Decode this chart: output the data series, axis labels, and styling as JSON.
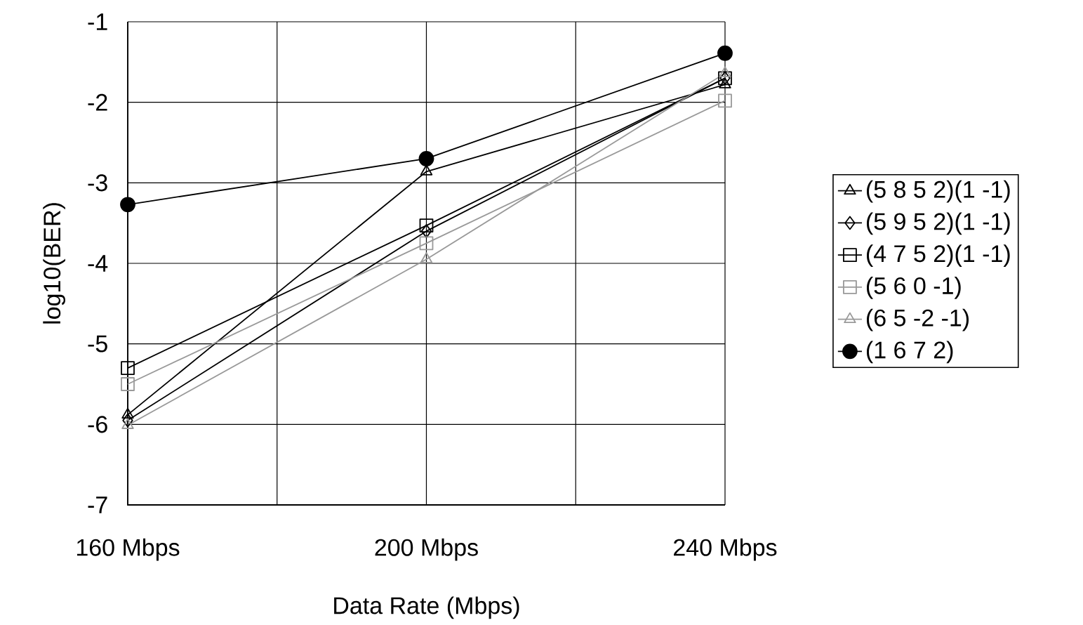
{
  "chart_data": {
    "type": "line",
    "xlabel": "Data Rate (Mbps)",
    "ylabel": "log10(BER)",
    "x": [
      160,
      200,
      240
    ],
    "xlim": [
      160,
      240
    ],
    "xticks": [
      {
        "value": 160,
        "label": "160 Mbps"
      },
      {
        "value": 180,
        "label": null
      },
      {
        "value": 200,
        "label": "200 Mbps"
      },
      {
        "value": 220,
        "label": null
      },
      {
        "value": 240,
        "label": "240 Mbps"
      }
    ],
    "ylim": [
      -7,
      -1
    ],
    "yticks": [
      -7,
      -6,
      -5,
      -4,
      -3,
      -2,
      -1
    ],
    "grid": true,
    "legend": "right",
    "line_style": "solid",
    "series": [
      {
        "name": "(5 8 5 2)(1 -1)",
        "color": "#000000",
        "marker": "triangle",
        "values": [
          -5.88,
          -2.86,
          -1.78
        ]
      },
      {
        "name": "(5 9 5 2)(1 -1)",
        "color": "#000000",
        "marker": "diamond",
        "values": [
          -5.95,
          -3.6,
          -1.7
        ]
      },
      {
        "name": "(4 7 5 2)(1 -1)",
        "color": "#000000",
        "marker": "square",
        "values": [
          -5.3,
          -3.53,
          -1.7
        ]
      },
      {
        "name": "(5 6 0 -1)",
        "color": "#999999",
        "marker": "square",
        "values": [
          -5.5,
          -3.75,
          -1.98
        ]
      },
      {
        "name": "(6 5 -2 -1)",
        "color": "#999999",
        "marker": "triangle",
        "values": [
          -6.01,
          -3.95,
          -1.64
        ]
      },
      {
        "name": "(1 6 7 2)",
        "color": "#000000",
        "marker": "circle",
        "values": [
          -3.27,
          -2.7,
          -1.39
        ]
      }
    ]
  }
}
